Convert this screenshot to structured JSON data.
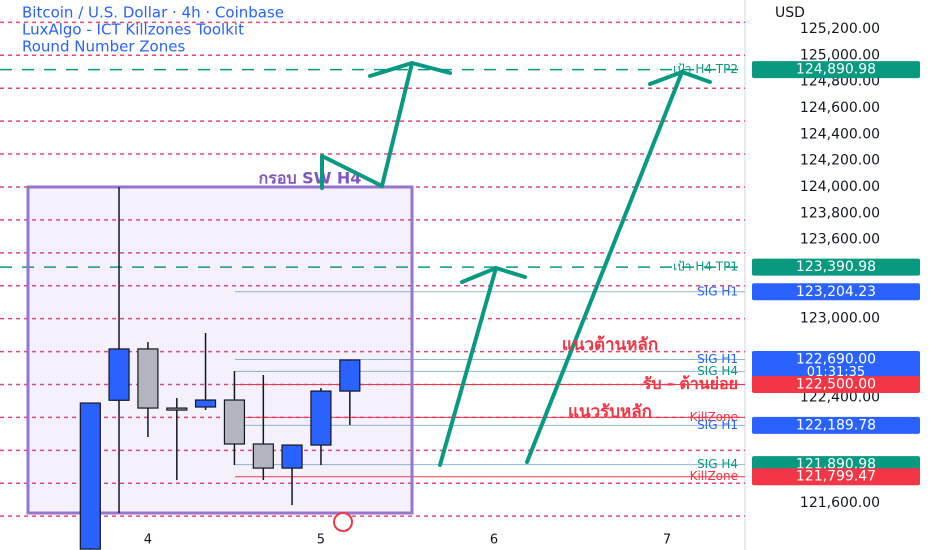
{
  "chart_data": {
    "type": "candlestick",
    "title": "Bitcoin / U.S. Dollar · 4h · Coinbase",
    "indicators": [
      "LuxAlgo - ICT Killzones Toolkit",
      "Round Number Zones"
    ],
    "currency": "USD",
    "x": [
      3.667,
      3.833,
      4,
      4.167,
      4.333,
      4.5,
      4.667,
      4.833,
      5,
      5.167
    ],
    "open": [
      121250,
      122380,
      122770,
      122321,
      122329,
      122382,
      122048,
      121865,
      122040,
      122450
    ],
    "high": [
      122359,
      124000,
      122822,
      122397,
      122891,
      122602,
      122572,
      122040,
      122473,
      122686
    ],
    "low": [
      121245,
      121524,
      122101,
      121774,
      122306,
      121888,
      121774,
      121584,
      121888,
      122192
    ],
    "close": [
      122359,
      122770,
      122321,
      122310,
      122382,
      122048,
      121865,
      122040,
      122450,
      122686
    ],
    "up_color": "#2962ff",
    "down_color": "#b2b5be",
    "xlim": [
      3.145,
      7.451
    ],
    "xticks": [
      4,
      5,
      6,
      7
    ],
    "ylim": [
      121243,
      125420
    ],
    "yticks": [
      {
        "value": 121600,
        "label": "121,600.00"
      },
      {
        "value": 122400,
        "label": "122,400.00"
      },
      {
        "value": 123000,
        "label": "123,000.00"
      },
      {
        "value": 123600,
        "label": "123,600.00"
      },
      {
        "value": 123800,
        "label": "123,800.00"
      },
      {
        "value": 124000,
        "label": "124,000.00"
      },
      {
        "value": 124200,
        "label": "124,200.00"
      },
      {
        "value": 124400,
        "label": "124,400.00"
      },
      {
        "value": 124600,
        "label": "124,600.00"
      },
      {
        "value": 124800,
        "label": "124,800.00"
      },
      {
        "value": 125000,
        "label": "125,000.00"
      },
      {
        "value": 125200,
        "label": "125,200.00"
      }
    ],
    "round_levels": [
      121500,
      121750,
      122000,
      122250,
      122500,
      122750,
      123000,
      123250,
      123500,
      123750,
      124000,
      124250,
      124500,
      124750,
      125000,
      125250
    ],
    "round_color": "#e8457a",
    "levels": [
      {
        "label": "เป้า H4 TP2",
        "value": 124890.98,
        "value_label": "124,890.98",
        "color": "#089981",
        "style": "dashed"
      },
      {
        "label": "เป้า H4 TP1",
        "value": 123390.98,
        "value_label": "123,390.98",
        "color": "#089981",
        "style": "dashed"
      },
      {
        "label": "SIG H1",
        "value": 123204.23,
        "value_label": "123,204.23",
        "color": "#2962ff",
        "style": "solid"
      },
      {
        "label": "SIG H1",
        "value": 122690.0,
        "value_label": "122,690.00",
        "color": "#2962ff",
        "style": "solid",
        "timer": "01:31:35"
      },
      {
        "label": "SIG H4",
        "value": 122600,
        "color": "#089981",
        "style": "solid"
      },
      {
        "label": "รับ - ต้านย่อย",
        "value": 122500.0,
        "value_label": "122,500.00",
        "color": "#f23645",
        "style": "solid"
      },
      {
        "label": "KillZone",
        "value": 122250,
        "color": "#f23645",
        "style": "solid"
      },
      {
        "label": "SIG H1",
        "value": 122189.78,
        "value_label": "122,189.78",
        "color": "#2962ff",
        "style": "solid"
      },
      {
        "label": "SIG H4",
        "value": 121890.98,
        "value_label": "121,890.98",
        "color": "#089981",
        "style": "solid"
      },
      {
        "label": "KillZone",
        "value": 121799.47,
        "value_label": "121,799.47",
        "color": "#f23645",
        "style": "solid"
      }
    ],
    "annotations": [
      "กรอบ SW H4",
      "แนวต้านหลัก",
      "แนวรับหลัก"
    ]
  }
}
